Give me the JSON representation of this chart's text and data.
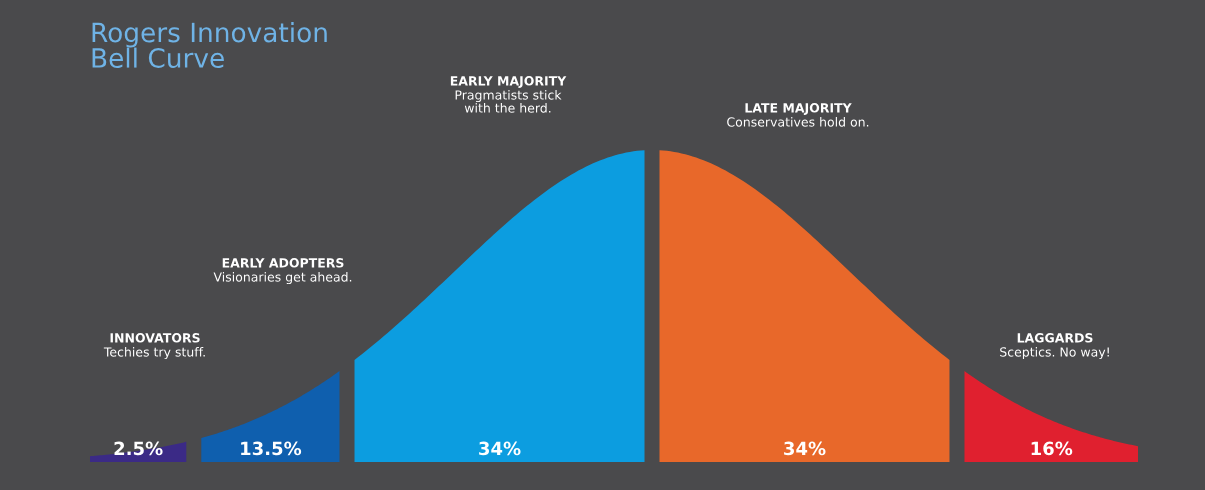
{
  "chart_data": {
    "type": "other",
    "title": "Rogers Innovation\nBell Curve",
    "categories": [
      "INNOVATORS",
      "EARLY ADOPTERS",
      "EARLY MAJORITY",
      "LATE MAJORITY",
      "LAGGARDS"
    ],
    "values": [
      2.5,
      13.5,
      34,
      34,
      16
    ],
    "value_labels": [
      "2.5%",
      "13.5%",
      "34%",
      "34%",
      "16%"
    ],
    "colors": [
      "#3b2a86",
      "#0f5fae",
      "#0c9de0",
      "#e8682a",
      "#e0202f"
    ],
    "annotations": [
      "Techies try stuff.",
      "Visionaries get ahead.",
      "Pragmatists stick\nwith the herd.",
      "Conservatives hold on.",
      "Sceptics. No way!"
    ]
  }
}
